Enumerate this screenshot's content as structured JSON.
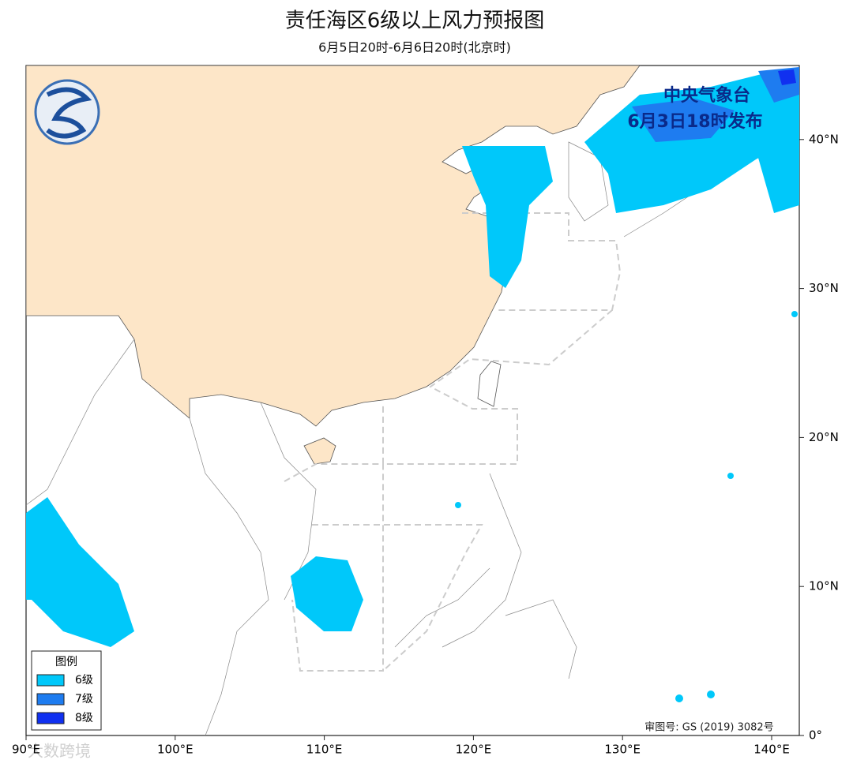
{
  "header": {
    "title": "责任海区6级以上风力预报图",
    "subtitle": "6月5日20时-6月6日20时(北京时)"
  },
  "issuer": {
    "name": "中央气象台",
    "time": "6月3日18时发布"
  },
  "legend": {
    "title": "图例",
    "items": [
      {
        "label": "6级",
        "color": "#00c8fa"
      },
      {
        "label": "7级",
        "color": "#1e7cf0"
      },
      {
        "label": "8级",
        "color": "#1030f0"
      }
    ]
  },
  "axes": {
    "xticks": [
      "90°E",
      "100°E",
      "110°E",
      "120°E",
      "130°E",
      "140°E"
    ],
    "yticks": [
      "0°",
      "10°N",
      "20°N",
      "30°N",
      "40°N"
    ]
  },
  "footer": "审图号: GS (2019) 3082号",
  "watermark": "大数跨境"
}
